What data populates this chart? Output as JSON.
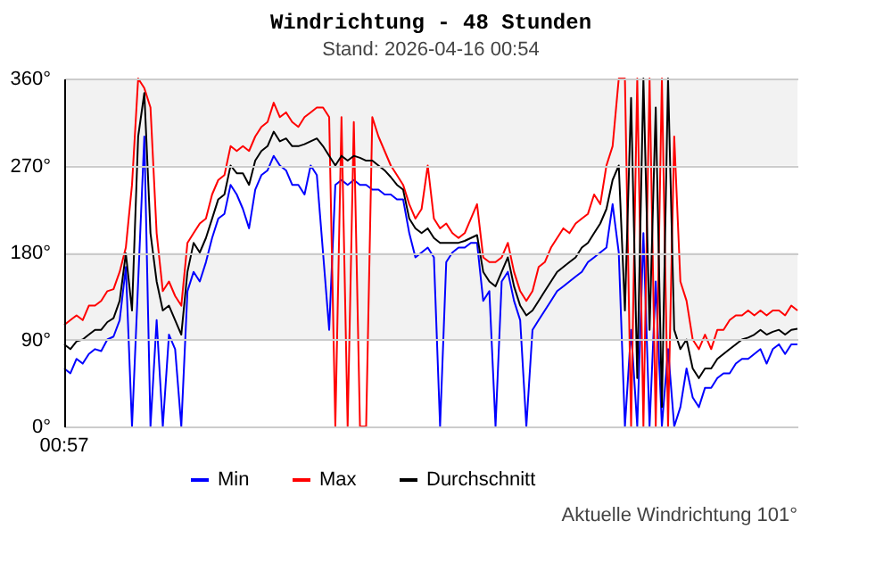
{
  "chart_data": {
    "type": "line",
    "title": "Windrichtung - 48 Stunden",
    "subtitle": "Stand: 2026-04-16 00:54",
    "annotations": [
      "00:57",
      "Aktuelle Windrichtung 101°"
    ],
    "categories": [
      null,
      null,
      null,
      null,
      null,
      null,
      null,
      null,
      null,
      null,
      null,
      null,
      null,
      null,
      null,
      null,
      null,
      null,
      null,
      null,
      null,
      null,
      null,
      null,
      null,
      null,
      null,
      null,
      null,
      null,
      null,
      null,
      null,
      null,
      null,
      null,
      null,
      null,
      null,
      null,
      null,
      null,
      null,
      null,
      null,
      null,
      null,
      null,
      null,
      null,
      null,
      null,
      null,
      null,
      null,
      null,
      null,
      null,
      null,
      null,
      null,
      null,
      null,
      null,
      null,
      null,
      null,
      null,
      null,
      null,
      null,
      null,
      null,
      null,
      null,
      null,
      null,
      null,
      null,
      null,
      null,
      null,
      null,
      null,
      null,
      null,
      null,
      null,
      null,
      null,
      null,
      null,
      null,
      null,
      null,
      null,
      null,
      null,
      null,
      null,
      null,
      null,
      null,
      null,
      null,
      null,
      null,
      null,
      null,
      null,
      null,
      null,
      null,
      null,
      null,
      null,
      null,
      null,
      null,
      null
    ],
    "series": [
      {
        "name": "Min",
        "color": "#0000ff",
        "values": [
          60,
          55,
          70,
          65,
          75,
          80,
          78,
          90,
          93,
          110,
          165,
          0,
          150,
          300,
          0,
          110,
          0,
          95,
          80,
          0,
          140,
          160,
          150,
          170,
          195,
          215,
          220,
          250,
          240,
          225,
          205,
          245,
          260,
          265,
          280,
          270,
          265,
          250,
          250,
          240,
          270,
          260,
          180,
          100,
          250,
          255,
          250,
          255,
          250,
          250,
          245,
          245,
          240,
          240,
          235,
          235,
          200,
          175,
          180,
          185,
          175,
          0,
          170,
          180,
          185,
          185,
          190,
          190,
          130,
          140,
          0,
          150,
          160,
          130,
          110,
          0,
          100,
          110,
          120,
          130,
          140,
          145,
          150,
          155,
          160,
          170,
          175,
          180,
          185,
          230,
          180,
          0,
          100,
          0,
          200,
          0,
          150,
          0,
          80,
          0,
          20,
          60,
          30,
          20,
          40,
          40,
          50,
          55,
          55,
          65,
          70,
          70,
          75,
          80,
          65,
          80,
          85,
          75,
          85,
          85
        ]
      },
      {
        "name": "Max",
        "color": "#ff0000",
        "values": [
          105,
          110,
          115,
          110,
          125,
          125,
          130,
          140,
          142,
          160,
          185,
          250,
          360,
          350,
          330,
          200,
          140,
          150,
          135,
          125,
          190,
          200,
          210,
          215,
          240,
          255,
          260,
          290,
          285,
          290,
          285,
          300,
          310,
          315,
          335,
          320,
          325,
          315,
          310,
          320,
          325,
          330,
          330,
          320,
          0,
          320,
          0,
          315,
          0,
          0,
          320,
          300,
          285,
          270,
          260,
          250,
          230,
          215,
          225,
          270,
          215,
          205,
          210,
          200,
          195,
          200,
          215,
          230,
          175,
          170,
          170,
          175,
          190,
          160,
          140,
          130,
          140,
          165,
          170,
          185,
          195,
          205,
          200,
          210,
          215,
          220,
          240,
          230,
          270,
          290,
          360,
          360,
          0,
          360,
          0,
          360,
          0,
          360,
          0,
          300,
          150,
          130,
          90,
          80,
          95,
          80,
          100,
          100,
          110,
          115,
          115,
          120,
          115,
          120,
          115,
          120,
          120,
          115,
          125,
          120
        ]
      },
      {
        "name": "Durchschnitt",
        "color": "#000000",
        "values": [
          85,
          80,
          88,
          90,
          95,
          100,
          100,
          108,
          112,
          130,
          179,
          120,
          300,
          345,
          200,
          150,
          120,
          125,
          110,
          95,
          160,
          190,
          180,
          195,
          215,
          235,
          240,
          270,
          262,
          262,
          250,
          275,
          285,
          290,
          305,
          295,
          298,
          290,
          290,
          292,
          295,
          298,
          290,
          280,
          270,
          280,
          275,
          280,
          278,
          275,
          275,
          270,
          265,
          258,
          250,
          245,
          215,
          205,
          200,
          205,
          195,
          190,
          190,
          190,
          190,
          192,
          195,
          198,
          160,
          150,
          145,
          160,
          175,
          145,
          125,
          115,
          120,
          130,
          140,
          150,
          160,
          165,
          170,
          175,
          185,
          190,
          200,
          210,
          225,
          255,
          270,
          120,
          340,
          50,
          360,
          100,
          330,
          20,
          360,
          100,
          80,
          90,
          60,
          50,
          60,
          60,
          70,
          75,
          80,
          85,
          90,
          92,
          95,
          100,
          95,
          98,
          100,
          95,
          100,
          101
        ]
      }
    ],
    "ylim": [
      0,
      360
    ],
    "yticks": [
      {
        "value": 0,
        "label": "0°"
      },
      {
        "value": 90,
        "label": "90°"
      },
      {
        "value": 180,
        "label": "180°"
      },
      {
        "value": 270,
        "label": "270°"
      },
      {
        "value": 360,
        "label": "360°"
      }
    ],
    "bands": [
      {
        "axis": "y",
        "from": 90,
        "to": 180,
        "label": null,
        "color": "#f2f2f2"
      },
      {
        "axis": "y",
        "from": 270,
        "to": 360,
        "label": null,
        "color": "#f2f2f2"
      }
    ],
    "grid": "y",
    "legend": "bottom",
    "marker": "none",
    "line_style": "solid"
  }
}
